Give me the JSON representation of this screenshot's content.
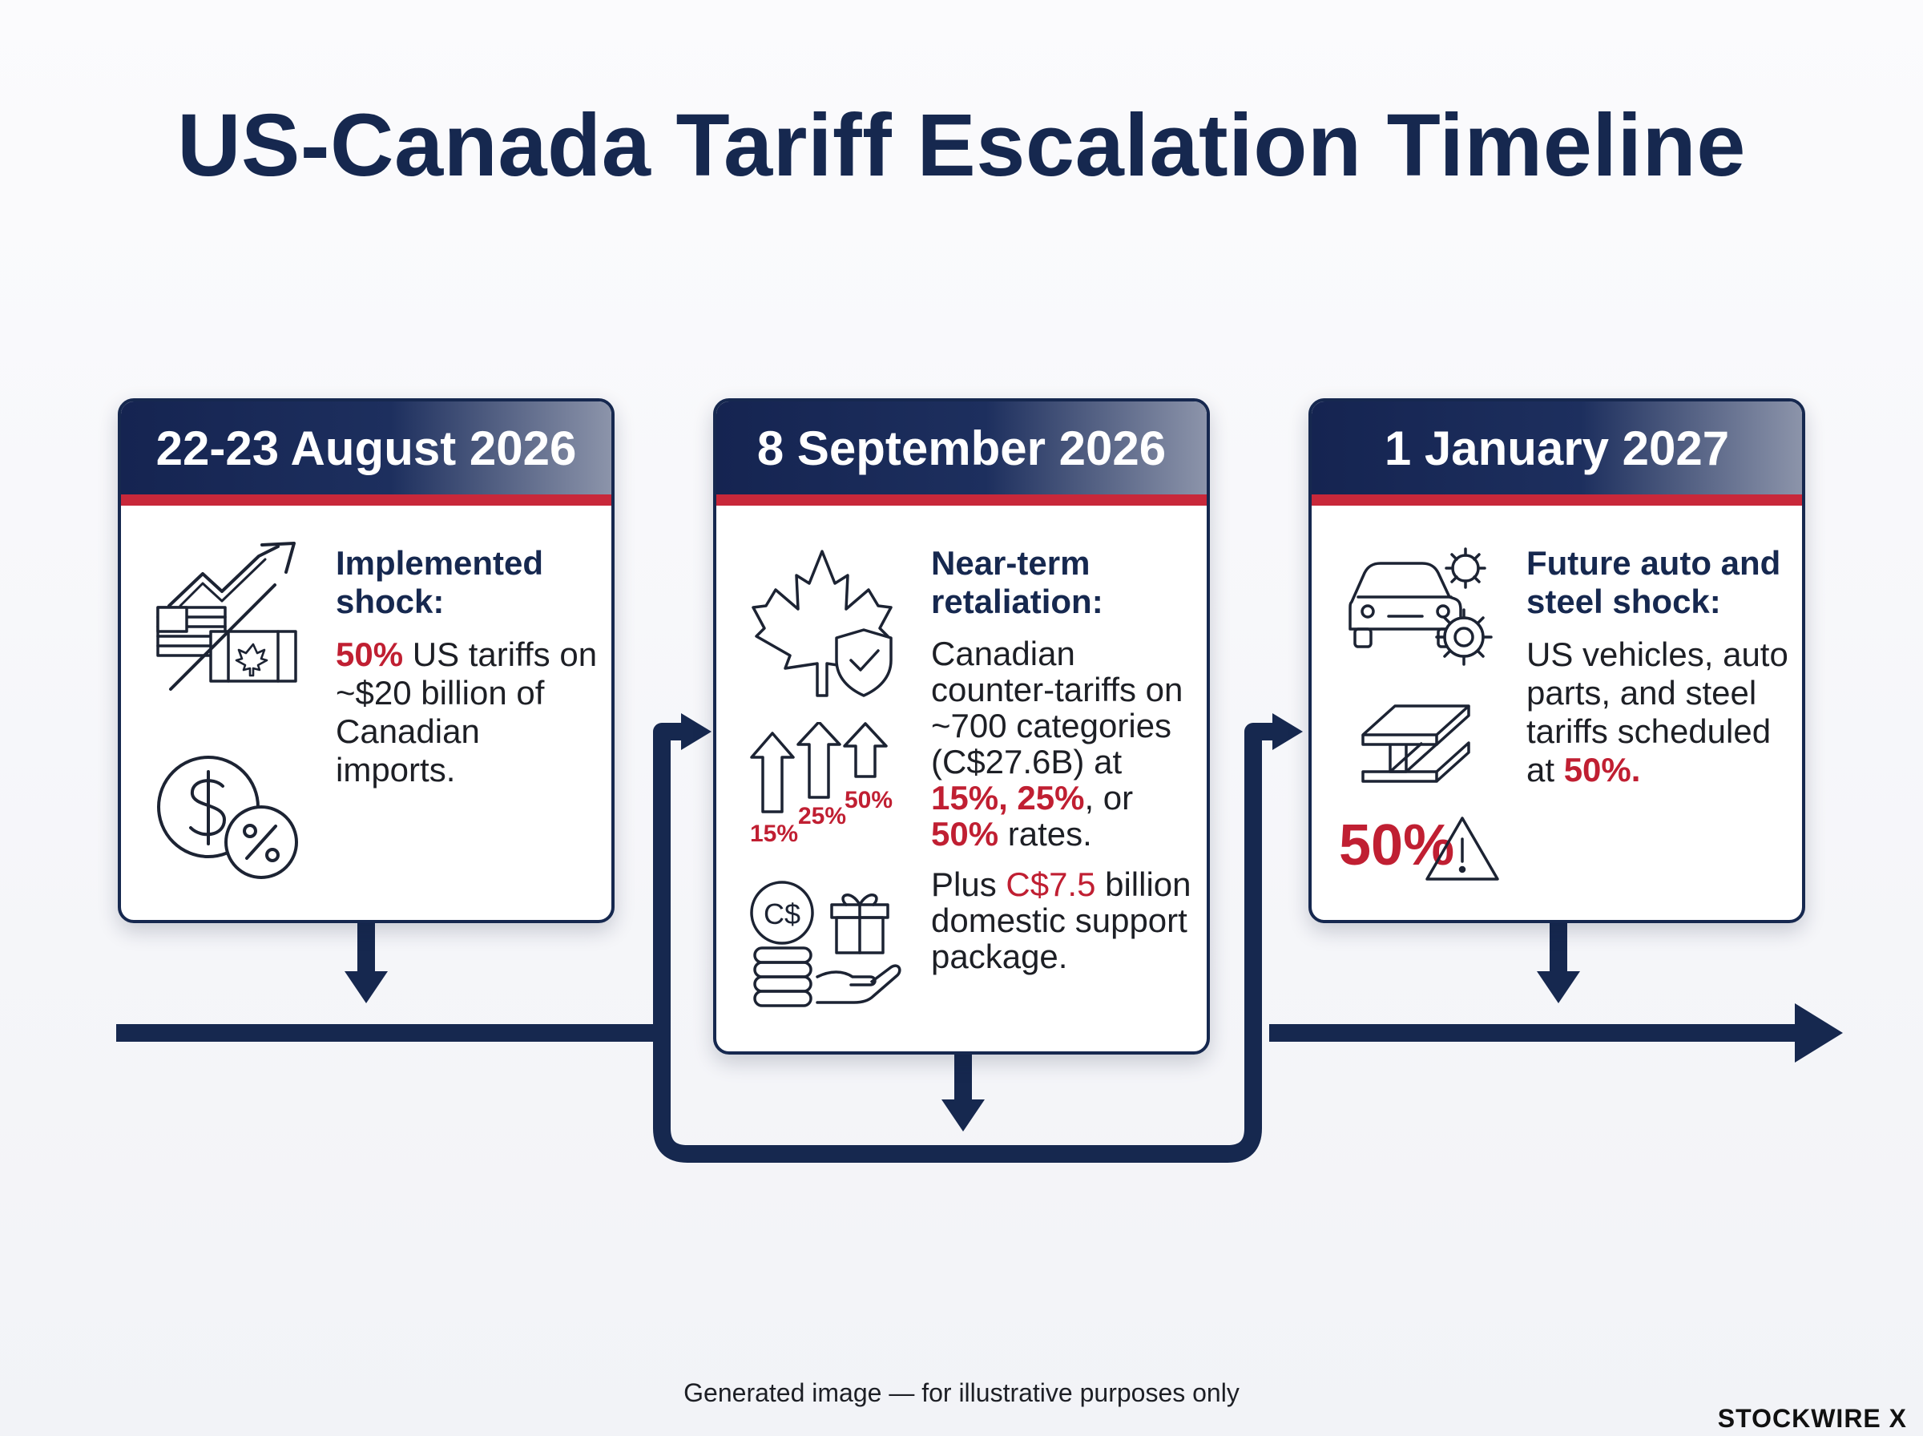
{
  "title": "US-Canada Tariff Escalation Timeline",
  "cards": [
    {
      "date": "22-23 August 2026",
      "heading": "Implemented shock:",
      "body": {
        "highlight": "50%",
        "text": " US tariffs on ~$20 billion of Canadian imports."
      },
      "icons": [
        "rising-arrow-flags-icon",
        "dollar-percent-icon"
      ]
    },
    {
      "date": "8 September 2026",
      "heading": "Near-term retaliation:",
      "body": {
        "text_before": "Canadian counter-tariffs on ~700 categories (C$27.6B) at ",
        "rate_15": "15%",
        "sep1": ", ",
        "rate_25": "25%",
        "sep2": ", or ",
        "rate_50": "50%",
        "text_after": " rates."
      },
      "support": {
        "prefix": "Plus ",
        "amount": "C$7.5",
        "suffix": " billion domestic support package."
      },
      "rate_labels": [
        "15%",
        "25%",
        "50%"
      ],
      "icons": [
        "maple-leaf-shield-icon",
        "rising-arrows-icon",
        "coins-gift-hand-icon"
      ],
      "coin_symbol": "C$"
    },
    {
      "date": "1 January 2027",
      "heading": "Future auto and steel shock:",
      "body": {
        "text": "US vehicles, auto parts, and steel tariffs scheduled at ",
        "highlight": "50%."
      },
      "badge": "50%",
      "icons": [
        "car-gears-icon",
        "steel-beam-icon",
        "warning-icon"
      ]
    }
  ],
  "footer_note": "Generated image — for illustrative purposes only",
  "brand": "STOCKWIRE X",
  "colors": {
    "navy": "#16284f",
    "red": "#c01f32"
  }
}
